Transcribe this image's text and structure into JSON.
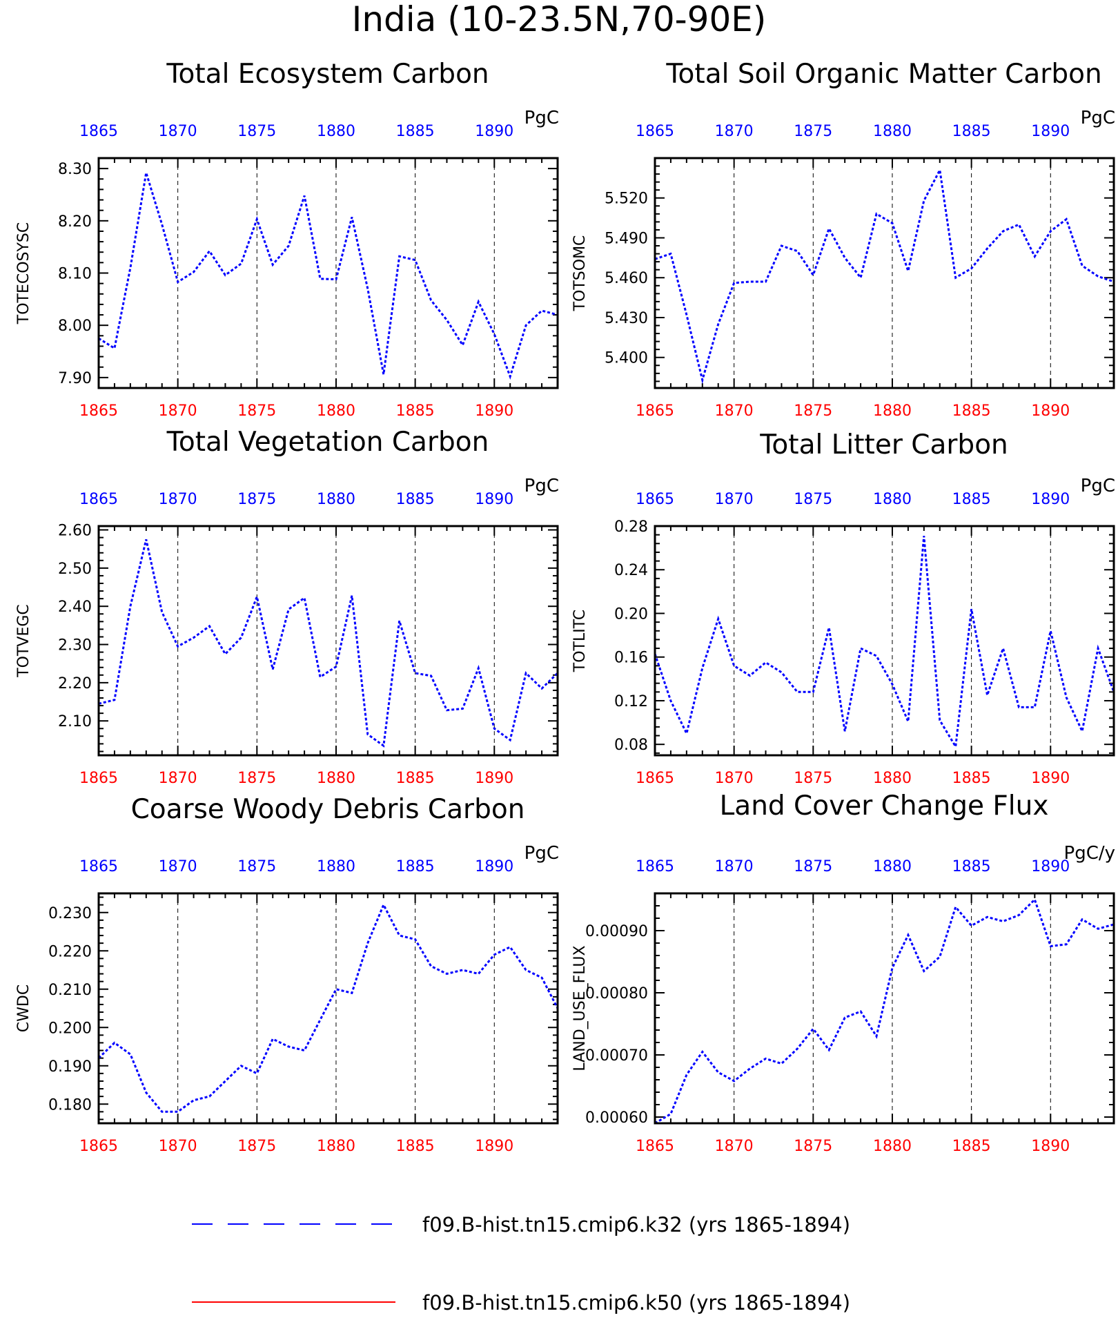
{
  "title": "India (10-23.5N,70-90E)",
  "colors": {
    "series": "#0000ff",
    "bottom_axis": "#ff0000",
    "top_axis": "#0000ff",
    "legend_k50": "#ff0000"
  },
  "legend": [
    {
      "label": "f09.B-hist.tn15.cmip6.k32 (yrs 1865-1894)",
      "color": "#0000ff",
      "style": "dashed"
    },
    {
      "label": "f09.B-hist.tn15.cmip6.k50 (yrs 1865-1894)",
      "color": "#ff0000",
      "style": "solid"
    }
  ],
  "chart_data": [
    {
      "type": "line",
      "title": "Total Ecosystem Carbon",
      "ylabel": "TOTECOSYSC",
      "unit": "PgC",
      "xlim": [
        1865,
        1894
      ],
      "ylim": [
        7.88,
        8.32
      ],
      "grid": "vertical-dashed",
      "xticks": [
        "1865",
        "1870",
        "1875",
        "1880",
        "1885",
        "1890"
      ],
      "yticks": [
        "7.90",
        "8.00",
        "8.10",
        "8.20",
        "8.30"
      ],
      "x": [
        1865,
        1866,
        1867,
        1868,
        1869,
        1870,
        1871,
        1872,
        1873,
        1874,
        1875,
        1876,
        1877,
        1878,
        1879,
        1880,
        1881,
        1882,
        1883,
        1884,
        1885,
        1886,
        1887,
        1888,
        1889,
        1890,
        1891,
        1892,
        1893,
        1894
      ],
      "series": [
        {
          "name": "",
          "values": [
            7.975,
            7.956,
            8.11,
            8.292,
            8.193,
            8.083,
            8.102,
            8.142,
            8.096,
            8.118,
            8.203,
            8.116,
            8.152,
            8.248,
            8.089,
            8.088,
            8.207,
            8.07,
            7.906,
            8.132,
            8.125,
            8.048,
            8.01,
            7.962,
            8.045,
            7.983,
            7.902,
            8.0,
            8.028,
            8.02
          ]
        }
      ]
    },
    {
      "type": "line",
      "title": "Total Soil Organic Matter Carbon",
      "ylabel": "TOTSOMC",
      "unit": "PgC",
      "xlim": [
        1865,
        1894
      ],
      "ylim": [
        5.377,
        5.55
      ],
      "grid": "vertical-dashed",
      "xticks": [
        "1865",
        "1870",
        "1875",
        "1880",
        "1885",
        "1890"
      ],
      "yticks": [
        "5.400",
        "5.430",
        "5.460",
        "5.490",
        "5.520"
      ],
      "x": [
        1865,
        1866,
        1867,
        1868,
        1869,
        1870,
        1871,
        1872,
        1873,
        1874,
        1875,
        1876,
        1877,
        1878,
        1879,
        1880,
        1881,
        1882,
        1883,
        1884,
        1885,
        1886,
        1887,
        1888,
        1889,
        1890,
        1891,
        1892,
        1893,
        1894
      ],
      "series": [
        {
          "name": "",
          "values": [
            5.474,
            5.478,
            5.432,
            5.383,
            5.425,
            5.456,
            5.457,
            5.457,
            5.484,
            5.48,
            5.462,
            5.497,
            5.475,
            5.46,
            5.508,
            5.501,
            5.465,
            5.518,
            5.541,
            5.46,
            5.467,
            5.482,
            5.495,
            5.5,
            5.476,
            5.495,
            5.504,
            5.469,
            5.461,
            5.457
          ]
        }
      ]
    },
    {
      "type": "line",
      "title": "Total Vegetation Carbon",
      "ylabel": "TOTVEGC",
      "unit": "PgC",
      "xlim": [
        1865,
        1894
      ],
      "ylim": [
        2.01,
        2.61
      ],
      "grid": "vertical-dashed",
      "xticks": [
        "1865",
        "1870",
        "1875",
        "1880",
        "1885",
        "1890"
      ],
      "yticks": [
        "2.10",
        "2.20",
        "2.30",
        "2.40",
        "2.50",
        "2.60"
      ],
      "x": [
        1865,
        1866,
        1867,
        1868,
        1869,
        1870,
        1871,
        1872,
        1873,
        1874,
        1875,
        1876,
        1877,
        1878,
        1879,
        1880,
        1881,
        1882,
        1883,
        1884,
        1885,
        1886,
        1887,
        1888,
        1889,
        1890,
        1891,
        1892,
        1893,
        1894
      ],
      "series": [
        {
          "name": "",
          "values": [
            2.145,
            2.155,
            2.4,
            2.575,
            2.385,
            2.295,
            2.318,
            2.348,
            2.275,
            2.318,
            2.425,
            2.235,
            2.392,
            2.422,
            2.215,
            2.242,
            2.428,
            2.065,
            2.035,
            2.362,
            2.225,
            2.218,
            2.128,
            2.132,
            2.238,
            2.08,
            2.05,
            2.225,
            2.185,
            2.225
          ]
        }
      ]
    },
    {
      "type": "line",
      "title": "Total Litter Carbon",
      "ylabel": "TOTLITC",
      "unit": "PgC",
      "xlim": [
        1865,
        1894
      ],
      "ylim": [
        0.07,
        0.28
      ],
      "grid": "vertical-dashed",
      "xticks": [
        "1865",
        "1870",
        "1875",
        "1880",
        "1885",
        "1890"
      ],
      "yticks": [
        "0.08",
        "0.12",
        "0.16",
        "0.20",
        "0.24",
        "0.28"
      ],
      "x": [
        1865,
        1866,
        1867,
        1868,
        1869,
        1870,
        1871,
        1872,
        1873,
        1874,
        1875,
        1876,
        1877,
        1878,
        1879,
        1880,
        1881,
        1882,
        1883,
        1884,
        1885,
        1886,
        1887,
        1888,
        1889,
        1890,
        1891,
        1892,
        1893,
        1894
      ],
      "series": [
        {
          "name": "",
          "values": [
            0.163,
            0.12,
            0.09,
            0.15,
            0.195,
            0.152,
            0.143,
            0.155,
            0.146,
            0.128,
            0.128,
            0.187,
            0.092,
            0.168,
            0.161,
            0.135,
            0.101,
            0.271,
            0.102,
            0.078,
            0.204,
            0.125,
            0.168,
            0.114,
            0.114,
            0.184,
            0.123,
            0.092,
            0.168,
            0.128
          ]
        }
      ]
    },
    {
      "type": "line",
      "title": "Coarse Woody Debris Carbon",
      "ylabel": "CWDC",
      "unit": "PgC",
      "xlim": [
        1865,
        1894
      ],
      "ylim": [
        0.175,
        0.235
      ],
      "grid": "vertical-dashed",
      "xticks": [
        "1865",
        "1870",
        "1875",
        "1880",
        "1885",
        "1890"
      ],
      "yticks": [
        "0.180",
        "0.190",
        "0.200",
        "0.210",
        "0.220",
        "0.230"
      ],
      "x": [
        1865,
        1866,
        1867,
        1868,
        1869,
        1870,
        1871,
        1872,
        1873,
        1874,
        1875,
        1876,
        1877,
        1878,
        1879,
        1880,
        1881,
        1882,
        1883,
        1884,
        1885,
        1886,
        1887,
        1888,
        1889,
        1890,
        1891,
        1892,
        1893,
        1894
      ],
      "series": [
        {
          "name": "",
          "values": [
            0.192,
            0.196,
            0.193,
            0.183,
            0.178,
            0.178,
            0.181,
            0.182,
            0.186,
            0.19,
            0.188,
            0.197,
            0.195,
            0.194,
            0.202,
            0.21,
            0.209,
            0.222,
            0.232,
            0.224,
            0.223,
            0.216,
            0.214,
            0.215,
            0.214,
            0.219,
            0.221,
            0.215,
            0.213,
            0.205
          ]
        }
      ]
    },
    {
      "type": "line",
      "title": "Land Cover Change Flux",
      "ylabel": "LAND_USE_FLUX",
      "unit": "PgC/y",
      "xlim": [
        1865,
        1894
      ],
      "ylim": [
        0.00059,
        0.00096
      ],
      "grid": "vertical-dashed",
      "xticks": [
        "1865",
        "1870",
        "1875",
        "1880",
        "1885",
        "1890"
      ],
      "yticks": [
        "0.00060",
        "0.00070",
        "0.00080",
        "0.00090"
      ],
      "x": [
        1865,
        1866,
        1867,
        1868,
        1869,
        1870,
        1871,
        1872,
        1873,
        1874,
        1875,
        1876,
        1877,
        1878,
        1879,
        1880,
        1881,
        1882,
        1883,
        1884,
        1885,
        1886,
        1887,
        1888,
        1889,
        1890,
        1891,
        1892,
        1893,
        1894
      ],
      "series": [
        {
          "name": "",
          "values": [
            0.00059,
            0.000605,
            0.000668,
            0.000705,
            0.000672,
            0.000658,
            0.000678,
            0.000694,
            0.000686,
            0.00071,
            0.000742,
            0.000708,
            0.00076,
            0.00077,
            0.00073,
            0.00084,
            0.000893,
            0.000835,
            0.000858,
            0.000938,
            0.000908,
            0.000922,
            0.000915,
            0.000925,
            0.00095,
            0.000875,
            0.000878,
            0.000918,
            0.000903,
            0.00091
          ]
        }
      ]
    }
  ]
}
